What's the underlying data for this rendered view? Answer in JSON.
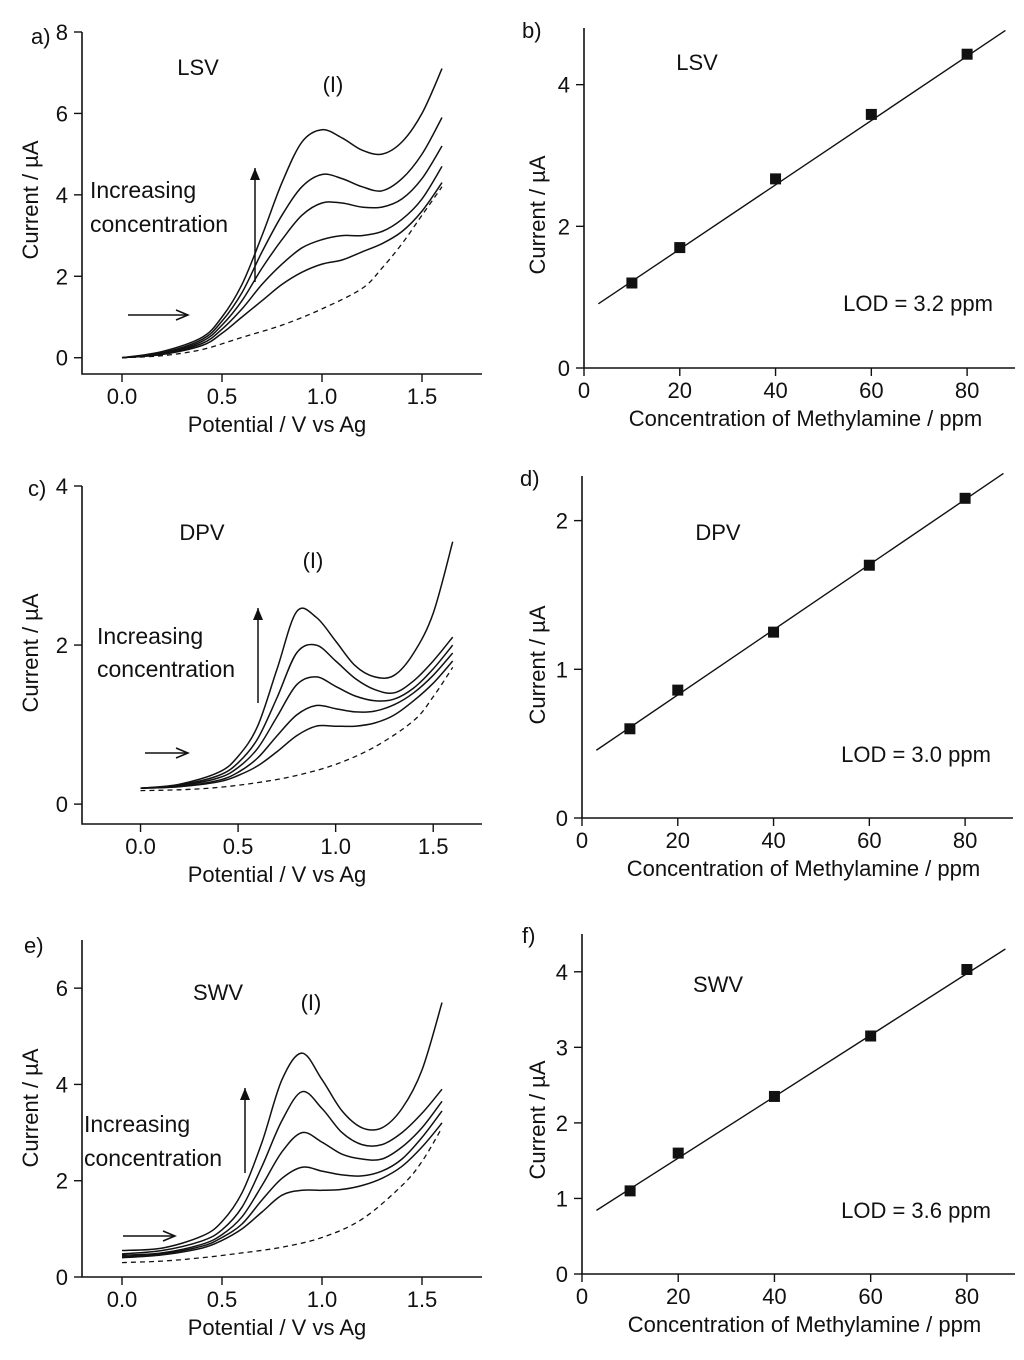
{
  "figure": {
    "panels": [
      {
        "id": "a",
        "label": "a)"
      },
      {
        "id": "b",
        "label": "b)"
      },
      {
        "id": "c",
        "label": "c)"
      },
      {
        "id": "d",
        "label": "d)"
      },
      {
        "id": "e",
        "label": "e)"
      },
      {
        "id": "f",
        "label": "f)"
      }
    ]
  },
  "chart_data": [
    {
      "panel": "a)",
      "type": "line",
      "method": "LSV",
      "xlabel": "Potential / V vs Ag",
      "ylabel": "Current / µA",
      "xlim": [
        -0.2,
        1.8
      ],
      "ylim": [
        -0.4,
        8
      ],
      "xticks": [
        0.0,
        0.5,
        1.0,
        1.5
      ],
      "xtick_labels": [
        "0.0",
        "0.5",
        "1.0",
        "1.5"
      ],
      "yticks": [
        0,
        2,
        4,
        6,
        8
      ],
      "ytick_labels": [
        "0",
        "2",
        "4",
        "6",
        "8"
      ],
      "annotations": {
        "method_label": "LSV",
        "peak_label": "(I)",
        "arrow_text_1": "Increasing",
        "arrow_text_2": "concentration"
      },
      "series": [
        {
          "name": "blank",
          "style": "dashed",
          "x": [
            0.0,
            0.2,
            0.4,
            0.6,
            0.8,
            1.0,
            1.2,
            1.3,
            1.4,
            1.5,
            1.6
          ],
          "y": [
            0.0,
            0.05,
            0.2,
            0.5,
            0.8,
            1.2,
            1.7,
            2.2,
            2.8,
            3.5,
            4.2
          ]
        },
        {
          "name": "conc-1",
          "style": "solid",
          "x": [
            0.0,
            0.2,
            0.4,
            0.5,
            0.6,
            0.7,
            0.8,
            0.9,
            1.0,
            1.1,
            1.2,
            1.3,
            1.4,
            1.5,
            1.6
          ],
          "y": [
            0.0,
            0.08,
            0.3,
            0.6,
            1.0,
            1.4,
            1.8,
            2.1,
            2.3,
            2.4,
            2.6,
            2.8,
            3.1,
            3.6,
            4.3
          ]
        },
        {
          "name": "conc-2",
          "style": "solid",
          "x": [
            0.0,
            0.2,
            0.4,
            0.5,
            0.6,
            0.7,
            0.8,
            0.9,
            1.0,
            1.1,
            1.2,
            1.3,
            1.4,
            1.5,
            1.6
          ],
          "y": [
            0.0,
            0.09,
            0.35,
            0.7,
            1.2,
            1.8,
            2.3,
            2.7,
            2.9,
            3.0,
            3.0,
            3.1,
            3.4,
            3.9,
            4.7
          ]
        },
        {
          "name": "conc-3",
          "style": "solid",
          "x": [
            0.0,
            0.2,
            0.4,
            0.5,
            0.6,
            0.7,
            0.8,
            0.9,
            1.0,
            1.1,
            1.2,
            1.3,
            1.4,
            1.5,
            1.6
          ],
          "y": [
            0.0,
            0.1,
            0.4,
            0.8,
            1.4,
            2.2,
            2.9,
            3.5,
            3.8,
            3.8,
            3.7,
            3.7,
            3.9,
            4.4,
            5.2
          ]
        },
        {
          "name": "conc-4",
          "style": "solid",
          "x": [
            0.0,
            0.2,
            0.4,
            0.5,
            0.6,
            0.7,
            0.8,
            0.9,
            1.0,
            1.1,
            1.2,
            1.3,
            1.4,
            1.5,
            1.6
          ],
          "y": [
            0.0,
            0.12,
            0.45,
            0.9,
            1.6,
            2.6,
            3.5,
            4.2,
            4.5,
            4.4,
            4.2,
            4.1,
            4.4,
            5.0,
            5.9
          ]
        },
        {
          "name": "conc-5",
          "style": "solid",
          "x": [
            0.0,
            0.2,
            0.4,
            0.5,
            0.6,
            0.7,
            0.8,
            0.9,
            1.0,
            1.1,
            1.2,
            1.3,
            1.4,
            1.5,
            1.6
          ],
          "y": [
            0.0,
            0.15,
            0.5,
            1.0,
            1.8,
            3.0,
            4.3,
            5.3,
            5.6,
            5.4,
            5.1,
            5.0,
            5.3,
            6.0,
            7.1
          ]
        }
      ]
    },
    {
      "panel": "b)",
      "type": "scatter",
      "method": "LSV",
      "xlabel": "Concentration of Methylamine / ppm",
      "ylabel": "Current / µA",
      "xlim": [
        0,
        90
      ],
      "ylim": [
        0,
        4.8
      ],
      "xticks": [
        0,
        20,
        40,
        60,
        80
      ],
      "xtick_labels": [
        "0",
        "20",
        "40",
        "60",
        "80"
      ],
      "yticks": [
        0,
        2,
        4
      ],
      "ytick_labels": [
        "0",
        "2",
        "4"
      ],
      "annotations": {
        "method_label": "LSV",
        "lod": "LOD = 3.2 ppm"
      },
      "x": [
        10,
        20,
        40,
        60,
        80
      ],
      "y": [
        1.2,
        1.7,
        2.67,
        3.58,
        4.43
      ],
      "fit": {
        "x_start": 3,
        "x_end": 88,
        "slope": 0.0454,
        "intercept": 0.77
      }
    },
    {
      "panel": "c)",
      "type": "line",
      "method": "DPV",
      "xlabel": "Potential / V vs Ag",
      "ylabel": "Current  / µA",
      "xlim": [
        -0.3,
        1.75
      ],
      "ylim": [
        -0.25,
        4
      ],
      "xticks": [
        0.0,
        0.5,
        1.0,
        1.5
      ],
      "xtick_labels": [
        "0.0",
        "0.5",
        "1.0",
        "1.5"
      ],
      "yticks": [
        0,
        2,
        4
      ],
      "ytick_labels": [
        "0",
        "2",
        "4"
      ],
      "annotations": {
        "method_label": "DPV",
        "peak_label": "(I)",
        "arrow_text_1": "Increasing",
        "arrow_text_2": "concentration"
      },
      "series": [
        {
          "name": "blank",
          "style": "dashed",
          "x": [
            0.0,
            0.2,
            0.4,
            0.6,
            0.8,
            1.0,
            1.2,
            1.4,
            1.5,
            1.6
          ],
          "y": [
            0.17,
            0.18,
            0.21,
            0.27,
            0.36,
            0.5,
            0.72,
            1.05,
            1.35,
            1.72
          ]
        },
        {
          "name": "conc-1",
          "style": "solid",
          "x": [
            0.0,
            0.2,
            0.4,
            0.5,
            0.6,
            0.7,
            0.8,
            0.9,
            1.0,
            1.1,
            1.2,
            1.3,
            1.4,
            1.5,
            1.6
          ],
          "y": [
            0.2,
            0.22,
            0.28,
            0.36,
            0.48,
            0.66,
            0.86,
            0.98,
            0.98,
            0.98,
            1.02,
            1.12,
            1.3,
            1.52,
            1.8
          ]
        },
        {
          "name": "conc-2",
          "style": "solid",
          "x": [
            0.0,
            0.2,
            0.4,
            0.5,
            0.6,
            0.7,
            0.8,
            0.9,
            1.0,
            1.1,
            1.2,
            1.3,
            1.4,
            1.5,
            1.6
          ],
          "y": [
            0.2,
            0.22,
            0.3,
            0.4,
            0.58,
            0.86,
            1.12,
            1.24,
            1.2,
            1.16,
            1.17,
            1.25,
            1.4,
            1.62,
            1.9
          ]
        },
        {
          "name": "conc-3",
          "style": "solid",
          "x": [
            0.0,
            0.2,
            0.4,
            0.5,
            0.6,
            0.7,
            0.8,
            0.9,
            1.0,
            1.1,
            1.2,
            1.3,
            1.4,
            1.5,
            1.6
          ],
          "y": [
            0.2,
            0.23,
            0.33,
            0.46,
            0.7,
            1.1,
            1.5,
            1.6,
            1.48,
            1.36,
            1.3,
            1.32,
            1.46,
            1.7,
            2.0
          ]
        },
        {
          "name": "conc-4",
          "style": "solid",
          "x": [
            0.0,
            0.2,
            0.4,
            0.5,
            0.6,
            0.7,
            0.8,
            0.9,
            1.0,
            1.1,
            1.2,
            1.3,
            1.4,
            1.5,
            1.6
          ],
          "y": [
            0.2,
            0.24,
            0.36,
            0.52,
            0.82,
            1.34,
            1.9,
            2.0,
            1.8,
            1.58,
            1.44,
            1.4,
            1.55,
            1.8,
            2.1
          ]
        },
        {
          "name": "conc-5",
          "style": "solid",
          "x": [
            0.0,
            0.2,
            0.4,
            0.5,
            0.6,
            0.7,
            0.8,
            0.9,
            1.0,
            1.1,
            1.2,
            1.3,
            1.4,
            1.5,
            1.6
          ],
          "y": [
            0.2,
            0.25,
            0.4,
            0.6,
            0.98,
            1.7,
            2.42,
            2.35,
            2.05,
            1.74,
            1.6,
            1.62,
            1.9,
            2.4,
            3.3
          ]
        }
      ]
    },
    {
      "panel": "d)",
      "type": "scatter",
      "method": "DPV",
      "xlabel": "Concentration of Methylamine / ppm",
      "ylabel": "Current / µA",
      "xlim": [
        0,
        90
      ],
      "ylim": [
        0,
        2.3
      ],
      "xticks": [
        0,
        20,
        40,
        60,
        80
      ],
      "xtick_labels": [
        "0",
        "20",
        "40",
        "60",
        "80"
      ],
      "yticks": [
        0,
        1,
        2
      ],
      "ytick_labels": [
        "0",
        "1",
        "2"
      ],
      "annotations": {
        "method_label": "DPV",
        "lod": "LOD = 3.0 ppm"
      },
      "x": [
        10,
        20,
        40,
        60,
        80
      ],
      "y": [
        0.6,
        0.86,
        1.25,
        1.7,
        2.15
      ],
      "fit": {
        "x_start": 3,
        "x_end": 88,
        "slope": 0.0219,
        "intercept": 0.39
      }
    },
    {
      "panel": "e)",
      "type": "line",
      "method": "SWV",
      "xlabel": "Potential / V vs Ag",
      "ylabel": "Current  / µA",
      "xlim": [
        -0.2,
        1.8
      ],
      "ylim": [
        0,
        7
      ],
      "xticks": [
        0.0,
        0.5,
        1.0,
        1.5
      ],
      "xtick_labels": [
        "0.0",
        "0.5",
        "1.0",
        "1.5"
      ],
      "yticks": [
        0,
        2,
        4,
        6
      ],
      "ytick_labels": [
        "0",
        "2",
        "4",
        "6"
      ],
      "annotations": {
        "method_label": "SWV",
        "peak_label": "(I)",
        "arrow_text_1": "Increasing",
        "arrow_text_2": "concentration"
      },
      "series": [
        {
          "name": "blank",
          "style": "dashed",
          "x": [
            0.0,
            0.2,
            0.4,
            0.6,
            0.8,
            1.0,
            1.2,
            1.4,
            1.5,
            1.6
          ],
          "y": [
            0.3,
            0.33,
            0.4,
            0.5,
            0.62,
            0.82,
            1.2,
            1.9,
            2.4,
            3.1
          ]
        },
        {
          "name": "conc-1",
          "style": "solid",
          "x": [
            0.0,
            0.2,
            0.4,
            0.5,
            0.6,
            0.7,
            0.8,
            0.9,
            1.0,
            1.1,
            1.2,
            1.3,
            1.4,
            1.5,
            1.6
          ],
          "y": [
            0.4,
            0.46,
            0.6,
            0.76,
            1.0,
            1.35,
            1.7,
            1.8,
            1.8,
            1.82,
            1.9,
            2.05,
            2.3,
            2.7,
            3.2
          ]
        },
        {
          "name": "conc-2",
          "style": "solid",
          "x": [
            0.0,
            0.2,
            0.4,
            0.5,
            0.6,
            0.7,
            0.8,
            0.9,
            1.0,
            1.1,
            1.2,
            1.3,
            1.4,
            1.5,
            1.6
          ],
          "y": [
            0.42,
            0.48,
            0.64,
            0.82,
            1.1,
            1.6,
            2.05,
            2.28,
            2.2,
            2.12,
            2.1,
            2.2,
            2.45,
            2.9,
            3.45
          ]
        },
        {
          "name": "conc-3",
          "style": "solid",
          "x": [
            0.0,
            0.2,
            0.4,
            0.5,
            0.6,
            0.7,
            0.8,
            0.9,
            1.0,
            1.1,
            1.2,
            1.3,
            1.4,
            1.5,
            1.6
          ],
          "y": [
            0.45,
            0.5,
            0.68,
            0.88,
            1.25,
            1.9,
            2.6,
            3.0,
            2.8,
            2.55,
            2.45,
            2.45,
            2.7,
            3.1,
            3.65
          ]
        },
        {
          "name": "conc-4",
          "style": "solid",
          "x": [
            0.0,
            0.2,
            0.4,
            0.5,
            0.6,
            0.7,
            0.8,
            0.9,
            1.0,
            1.1,
            1.2,
            1.3,
            1.4,
            1.5,
            1.6
          ],
          "y": [
            0.48,
            0.55,
            0.75,
            0.98,
            1.45,
            2.3,
            3.25,
            3.85,
            3.5,
            3.0,
            2.75,
            2.75,
            3.0,
            3.4,
            3.9
          ]
        },
        {
          "name": "conc-5",
          "style": "solid",
          "x": [
            0.0,
            0.2,
            0.4,
            0.5,
            0.6,
            0.7,
            0.8,
            0.9,
            1.0,
            1.1,
            1.2,
            1.3,
            1.4,
            1.5,
            1.6
          ],
          "y": [
            0.55,
            0.6,
            0.85,
            1.15,
            1.75,
            2.8,
            4.1,
            4.65,
            4.1,
            3.45,
            3.1,
            3.1,
            3.5,
            4.3,
            5.7
          ]
        }
      ]
    },
    {
      "panel": "f)",
      "type": "scatter",
      "method": "SWV",
      "xlabel": "Concentration of Methylamine / ppm",
      "ylabel": "Current / µA",
      "xlim": [
        0,
        90
      ],
      "ylim": [
        0,
        4.5
      ],
      "xticks": [
        0,
        20,
        40,
        60,
        80
      ],
      "xtick_labels": [
        "0",
        "20",
        "40",
        "60",
        "80"
      ],
      "yticks": [
        0,
        1,
        2,
        3,
        4
      ],
      "ytick_labels": [
        "0",
        "1",
        "2",
        "3",
        "4"
      ],
      "annotations": {
        "method_label": "SWV",
        "lod": "LOD = 3.6 ppm"
      },
      "x": [
        10,
        20,
        40,
        60,
        80
      ],
      "y": [
        1.1,
        1.6,
        2.35,
        3.15,
        4.03
      ],
      "fit": {
        "x_start": 3,
        "x_end": 88,
        "slope": 0.0407,
        "intercept": 0.72
      }
    }
  ]
}
